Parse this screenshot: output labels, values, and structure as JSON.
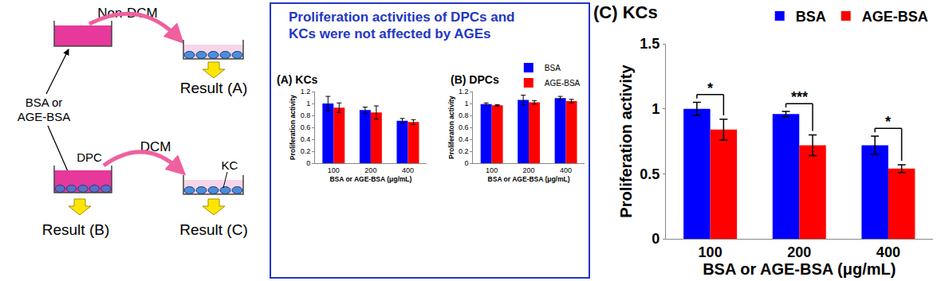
{
  "diagram": {
    "top_arrow_label": "Non-DCM",
    "medium_label": [
      "BSA or",
      "AGE-BSA"
    ],
    "bottom_arrow_label": "DCM",
    "dpc_label": "DPC",
    "kc_label": "KC",
    "results": [
      "Result (A)",
      "Result (B)",
      "Result (C)"
    ]
  },
  "panel_title": [
    "Proliferation activities of DPCs and",
    "KCs were not affected by AGEs"
  ],
  "chart_data": [
    {
      "type": "bar",
      "title": "(A) KCs",
      "x_label": "BSA or AGE-BSA (μg/mL)",
      "y_label": "Proliferation activity",
      "categories": [
        "100",
        "200",
        "400"
      ],
      "series": [
        {
          "name": "BSA",
          "color": "#0000ff",
          "values": [
            1.0,
            0.89,
            0.71
          ],
          "errors": [
            0.12,
            0.05,
            0.04
          ]
        },
        {
          "name": "AGE-BSA",
          "color": "#ff0000",
          "values": [
            0.93,
            0.85,
            0.69
          ],
          "errors": [
            0.08,
            0.11,
            0.04
          ]
        }
      ],
      "ylim": [
        0,
        1.2
      ],
      "yticks": [
        0,
        0.2,
        0.4,
        0.6,
        0.8,
        1,
        1.2
      ],
      "grid": false
    },
    {
      "type": "bar",
      "title": "(B) DPCs",
      "x_label": "BSA or AGE-BSA (μg/mL)",
      "y_label": "Proliferaton activity",
      "categories": [
        "100",
        "200",
        "400"
      ],
      "series": [
        {
          "name": "BSA",
          "color": "#0000ff",
          "values": [
            0.99,
            1.06,
            1.09
          ],
          "errors": [
            0.02,
            0.08,
            0.03
          ]
        },
        {
          "name": "AGE-BSA",
          "color": "#ff0000",
          "values": [
            0.97,
            1.02,
            1.04
          ],
          "errors": [
            0.01,
            0.03,
            0.03
          ]
        }
      ],
      "ylim": [
        0,
        1.2
      ],
      "yticks": [
        0,
        0.2,
        0.4,
        0.6,
        0.8,
        1,
        1.2
      ],
      "grid": false,
      "legend": "upper right"
    },
    {
      "type": "bar",
      "title": "(C) KCs",
      "x_label": "BSA or AGE-BSA (μg/mL)",
      "y_label": "Proliferation activity",
      "categories": [
        "100",
        "200",
        "400"
      ],
      "series": [
        {
          "name": "BSA",
          "color": "#0000ff",
          "values": [
            1.0,
            0.96,
            0.72
          ],
          "errors": [
            0.05,
            0.02,
            0.07
          ]
        },
        {
          "name": "AGE-BSA",
          "color": "#ff0000",
          "values": [
            0.84,
            0.72,
            0.54
          ],
          "errors": [
            0.08,
            0.08,
            0.03
          ]
        }
      ],
      "annotations": [
        {
          "category": "100",
          "text": "*"
        },
        {
          "category": "200",
          "text": "***"
        },
        {
          "category": "400",
          "text": "*"
        }
      ],
      "ylim": [
        0,
        1.5
      ],
      "yticks": [
        0,
        0.5,
        1,
        1.5
      ],
      "grid": false,
      "legend": "upper right"
    }
  ]
}
